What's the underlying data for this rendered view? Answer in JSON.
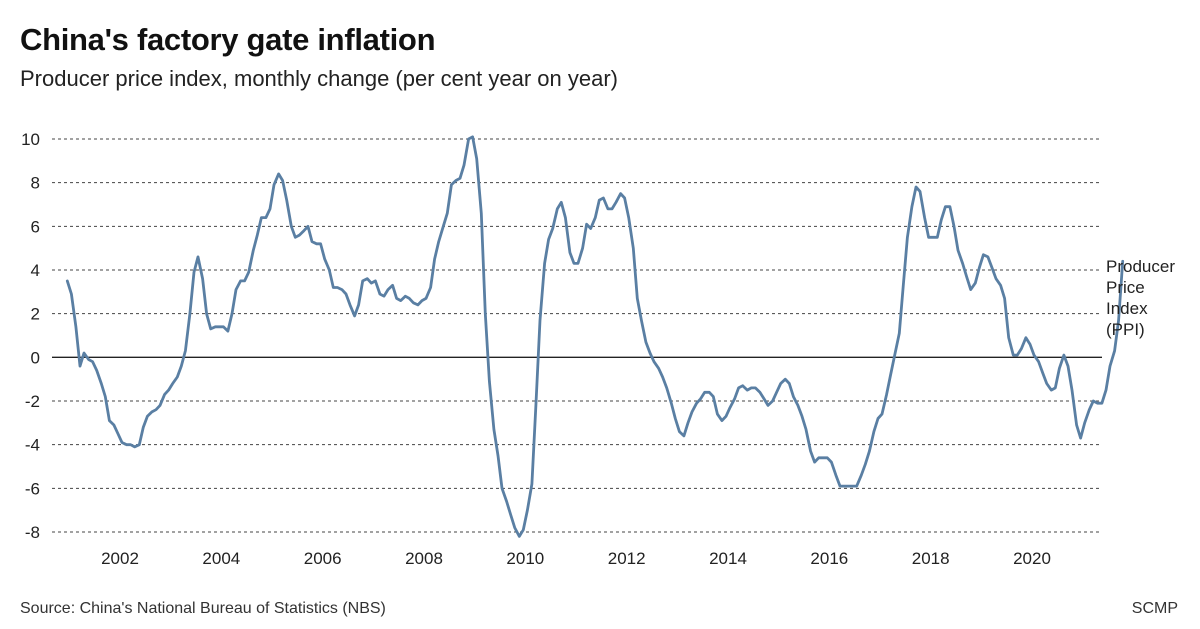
{
  "chart_data": {
    "type": "line",
    "title": "China's factory gate inflation",
    "subtitle": "Producer price index, monthly change (per cent year on year)",
    "xlabel": "",
    "ylabel": "",
    "ylim": [
      -8,
      10
    ],
    "yticks": [
      10,
      8,
      6,
      4,
      2,
      0,
      -2,
      -4,
      -6,
      -8
    ],
    "xticks": [
      2002,
      2004,
      2006,
      2008,
      2010,
      2012,
      2014,
      2016,
      2018,
      2020
    ],
    "grid": "horizontal dashed",
    "series_label_lines": [
      "Producer",
      "Price",
      "Index",
      "(PPI)"
    ],
    "line_color": "#5a7fa3",
    "series": [
      {
        "name": "Producer Price Index (PPI)",
        "points": [
          [
            2000.96,
            3.5
          ],
          [
            2001.04,
            2.9
          ],
          [
            2001.13,
            1.4
          ],
          [
            2001.21,
            -0.4
          ],
          [
            2001.29,
            0.2
          ],
          [
            2001.38,
            -0.1
          ],
          [
            2001.46,
            -0.2
          ],
          [
            2001.54,
            -0.6
          ],
          [
            2001.63,
            -1.2
          ],
          [
            2001.71,
            -1.8
          ],
          [
            2001.79,
            -2.9
          ],
          [
            2001.88,
            -3.1
          ],
          [
            2001.96,
            -3.5
          ],
          [
            2002.04,
            -3.9
          ],
          [
            2002.13,
            -4.0
          ],
          [
            2002.21,
            -4.0
          ],
          [
            2002.29,
            -4.1
          ],
          [
            2002.38,
            -4.0
          ],
          [
            2002.46,
            -3.2
          ],
          [
            2002.54,
            -2.7
          ],
          [
            2002.63,
            -2.5
          ],
          [
            2002.71,
            -2.4
          ],
          [
            2002.79,
            -2.2
          ],
          [
            2002.88,
            -1.7
          ],
          [
            2002.96,
            -1.5
          ],
          [
            2003.04,
            -1.2
          ],
          [
            2003.13,
            -0.9
          ],
          [
            2003.21,
            -0.4
          ],
          [
            2003.29,
            0.3
          ],
          [
            2003.38,
            2.0
          ],
          [
            2003.46,
            3.9
          ],
          [
            2003.54,
            4.6
          ],
          [
            2003.63,
            3.6
          ],
          [
            2003.71,
            2.0
          ],
          [
            2003.79,
            1.3
          ],
          [
            2003.88,
            1.4
          ],
          [
            2003.96,
            1.4
          ],
          [
            2004.04,
            1.4
          ],
          [
            2004.13,
            1.2
          ],
          [
            2004.21,
            2.0
          ],
          [
            2004.29,
            3.1
          ],
          [
            2004.38,
            3.5
          ],
          [
            2004.46,
            3.5
          ],
          [
            2004.54,
            3.9
          ],
          [
            2004.63,
            4.9
          ],
          [
            2004.71,
            5.6
          ],
          [
            2004.79,
            6.4
          ],
          [
            2004.88,
            6.4
          ],
          [
            2004.96,
            6.8
          ],
          [
            2005.04,
            7.9
          ],
          [
            2005.13,
            8.4
          ],
          [
            2005.21,
            8.1
          ],
          [
            2005.29,
            7.2
          ],
          [
            2005.38,
            6.0
          ],
          [
            2005.46,
            5.5
          ],
          [
            2005.54,
            5.6
          ],
          [
            2005.63,
            5.8
          ],
          [
            2005.71,
            6.0
          ],
          [
            2005.79,
            5.3
          ],
          [
            2005.88,
            5.2
          ],
          [
            2005.96,
            5.2
          ],
          [
            2006.04,
            4.5
          ],
          [
            2006.13,
            4.0
          ],
          [
            2006.21,
            3.2
          ],
          [
            2006.29,
            3.2
          ],
          [
            2006.38,
            3.1
          ],
          [
            2006.46,
            2.9
          ],
          [
            2006.54,
            2.4
          ],
          [
            2006.63,
            1.9
          ],
          [
            2006.71,
            2.4
          ],
          [
            2006.79,
            3.5
          ],
          [
            2006.88,
            3.6
          ],
          [
            2006.96,
            3.4
          ],
          [
            2007.04,
            3.5
          ],
          [
            2007.13,
            2.9
          ],
          [
            2007.21,
            2.8
          ],
          [
            2007.29,
            3.1
          ],
          [
            2007.38,
            3.3
          ],
          [
            2007.46,
            2.7
          ],
          [
            2007.54,
            2.6
          ],
          [
            2007.63,
            2.8
          ],
          [
            2007.71,
            2.7
          ],
          [
            2007.79,
            2.5
          ],
          [
            2007.88,
            2.4
          ],
          [
            2007.96,
            2.6
          ],
          [
            2008.04,
            2.7
          ],
          [
            2008.13,
            3.2
          ],
          [
            2008.21,
            4.5
          ],
          [
            2008.29,
            5.3
          ],
          [
            2008.38,
            6.0
          ],
          [
            2008.46,
            6.6
          ],
          [
            2008.54,
            7.9
          ],
          [
            2008.63,
            8.1
          ],
          [
            2008.71,
            8.2
          ],
          [
            2008.79,
            8.8
          ],
          [
            2008.88,
            10.0
          ],
          [
            2008.96,
            10.1
          ],
          [
            2009.04,
            9.1
          ],
          [
            2009.13,
            6.6
          ],
          [
            2009.21,
            2.0
          ],
          [
            2009.29,
            -1.1
          ],
          [
            2009.38,
            -3.3
          ],
          [
            2009.46,
            -4.5
          ],
          [
            2009.54,
            -6.0
          ],
          [
            2009.63,
            -6.6
          ],
          [
            2009.71,
            -7.2
          ],
          [
            2009.79,
            -7.8
          ],
          [
            2009.88,
            -8.2
          ],
          [
            2009.96,
            -7.9
          ],
          [
            2010.04,
            -7.0
          ],
          [
            2010.13,
            -5.8
          ],
          [
            2010.21,
            -2.1
          ],
          [
            2010.29,
            1.7
          ],
          [
            2010.38,
            4.3
          ],
          [
            2010.46,
            5.4
          ],
          [
            2010.54,
            5.9
          ],
          [
            2010.63,
            6.8
          ],
          [
            2010.71,
            7.1
          ],
          [
            2010.79,
            6.4
          ],
          [
            2010.88,
            4.8
          ],
          [
            2010.96,
            4.3
          ],
          [
            2011.04,
            4.3
          ],
          [
            2011.13,
            5.0
          ],
          [
            2011.21,
            6.1
          ],
          [
            2011.29,
            5.9
          ],
          [
            2011.38,
            6.4
          ],
          [
            2011.46,
            7.2
          ],
          [
            2011.54,
            7.3
          ],
          [
            2011.63,
            6.8
          ],
          [
            2011.71,
            6.8
          ],
          [
            2011.79,
            7.1
          ],
          [
            2011.88,
            7.5
          ],
          [
            2011.96,
            7.3
          ],
          [
            2012.04,
            6.4
          ],
          [
            2012.13,
            5.0
          ],
          [
            2012.21,
            2.7
          ],
          [
            2012.29,
            1.7
          ],
          [
            2012.38,
            0.7
          ],
          [
            2012.46,
            0.2
          ],
          [
            2012.54,
            -0.2
          ],
          [
            2012.63,
            -0.5
          ],
          [
            2012.71,
            -0.9
          ],
          [
            2012.79,
            -1.4
          ],
          [
            2012.88,
            -2.1
          ],
          [
            2012.96,
            -2.8
          ],
          [
            2013.04,
            -3.4
          ],
          [
            2013.13,
            -3.6
          ],
          [
            2013.21,
            -3.0
          ],
          [
            2013.29,
            -2.5
          ],
          [
            2013.38,
            -2.1
          ],
          [
            2013.46,
            -1.9
          ],
          [
            2013.54,
            -1.6
          ],
          [
            2013.63,
            -1.6
          ],
          [
            2013.71,
            -1.8
          ],
          [
            2013.79,
            -2.6
          ],
          [
            2013.88,
            -2.9
          ],
          [
            2013.96,
            -2.7
          ],
          [
            2014.04,
            -2.3
          ],
          [
            2014.13,
            -1.9
          ],
          [
            2014.21,
            -1.4
          ],
          [
            2014.29,
            -1.3
          ],
          [
            2014.38,
            -1.5
          ],
          [
            2014.46,
            -1.4
          ],
          [
            2014.54,
            -1.4
          ],
          [
            2014.63,
            -1.6
          ],
          [
            2014.71,
            -1.9
          ],
          [
            2014.79,
            -2.2
          ],
          [
            2014.88,
            -2.0
          ],
          [
            2014.96,
            -1.6
          ],
          [
            2015.04,
            -1.2
          ],
          [
            2015.13,
            -1.0
          ],
          [
            2015.21,
            -1.2
          ],
          [
            2015.29,
            -1.8
          ],
          [
            2015.38,
            -2.2
          ],
          [
            2015.46,
            -2.7
          ],
          [
            2015.54,
            -3.3
          ],
          [
            2015.63,
            -4.3
          ],
          [
            2015.71,
            -4.8
          ],
          [
            2015.79,
            -4.6
          ],
          [
            2015.88,
            -4.6
          ],
          [
            2015.96,
            -4.6
          ],
          [
            2016.04,
            -4.8
          ],
          [
            2016.13,
            -5.4
          ],
          [
            2016.21,
            -5.9
          ],
          [
            2016.29,
            -5.9
          ],
          [
            2016.38,
            -5.9
          ],
          [
            2016.46,
            -5.9
          ],
          [
            2016.54,
            -5.9
          ],
          [
            2016.63,
            -5.4
          ],
          [
            2016.71,
            -4.9
          ],
          [
            2016.79,
            -4.3
          ],
          [
            2016.88,
            -3.4
          ],
          [
            2016.96,
            -2.8
          ],
          [
            2017.04,
            -2.6
          ],
          [
            2017.13,
            -1.7
          ],
          [
            2017.21,
            -0.8
          ],
          [
            2017.29,
            0.1
          ],
          [
            2017.38,
            1.1
          ],
          [
            2017.46,
            3.3
          ],
          [
            2017.54,
            5.5
          ],
          [
            2017.63,
            6.9
          ],
          [
            2017.71,
            7.8
          ],
          [
            2017.79,
            7.6
          ],
          [
            2017.88,
            6.4
          ],
          [
            2017.96,
            5.5
          ],
          [
            2018.04,
            5.5
          ],
          [
            2018.13,
            5.5
          ],
          [
            2018.21,
            6.3
          ],
          [
            2018.29,
            6.9
          ],
          [
            2018.38,
            6.9
          ],
          [
            2018.46,
            6.0
          ],
          [
            2018.54,
            4.9
          ],
          [
            2018.63,
            4.3
          ],
          [
            2018.71,
            3.7
          ],
          [
            2018.79,
            3.1
          ],
          [
            2018.88,
            3.4
          ],
          [
            2018.96,
            4.1
          ],
          [
            2019.04,
            4.7
          ],
          [
            2019.13,
            4.6
          ],
          [
            2019.21,
            4.1
          ],
          [
            2019.29,
            3.6
          ],
          [
            2019.38,
            3.3
          ],
          [
            2019.46,
            2.7
          ],
          [
            2019.54,
            0.9
          ],
          [
            2019.63,
            0.1
          ],
          [
            2019.71,
            0.1
          ],
          [
            2019.79,
            0.4
          ],
          [
            2019.88,
            0.9
          ],
          [
            2019.96,
            0.6
          ],
          [
            2020.04,
            0.1
          ],
          [
            2020.13,
            -0.2
          ],
          [
            2020.21,
            -0.7
          ],
          [
            2020.29,
            -1.2
          ],
          [
            2020.38,
            -1.5
          ],
          [
            2020.46,
            -1.4
          ],
          [
            2020.54,
            -0.5
          ],
          [
            2020.63,
            0.1
          ],
          [
            2020.71,
            -0.4
          ],
          [
            2020.79,
            -1.5
          ],
          [
            2020.88,
            -3.1
          ],
          [
            2020.96,
            -3.7
          ],
          [
            2021.04,
            -3.0
          ],
          [
            2021.13,
            -2.4
          ],
          [
            2021.21,
            -2.0
          ],
          [
            2021.29,
            -2.1
          ],
          [
            2021.38,
            -2.1
          ],
          [
            2021.46,
            -1.5
          ],
          [
            2021.54,
            -0.4
          ],
          [
            2021.63,
            0.3
          ],
          [
            2021.71,
            1.7
          ],
          [
            2021.79,
            4.4
          ]
        ]
      }
    ]
  },
  "footer": {
    "source": "Source: China's National Bureau of Statistics (NBS)",
    "credit": "SCMP"
  }
}
